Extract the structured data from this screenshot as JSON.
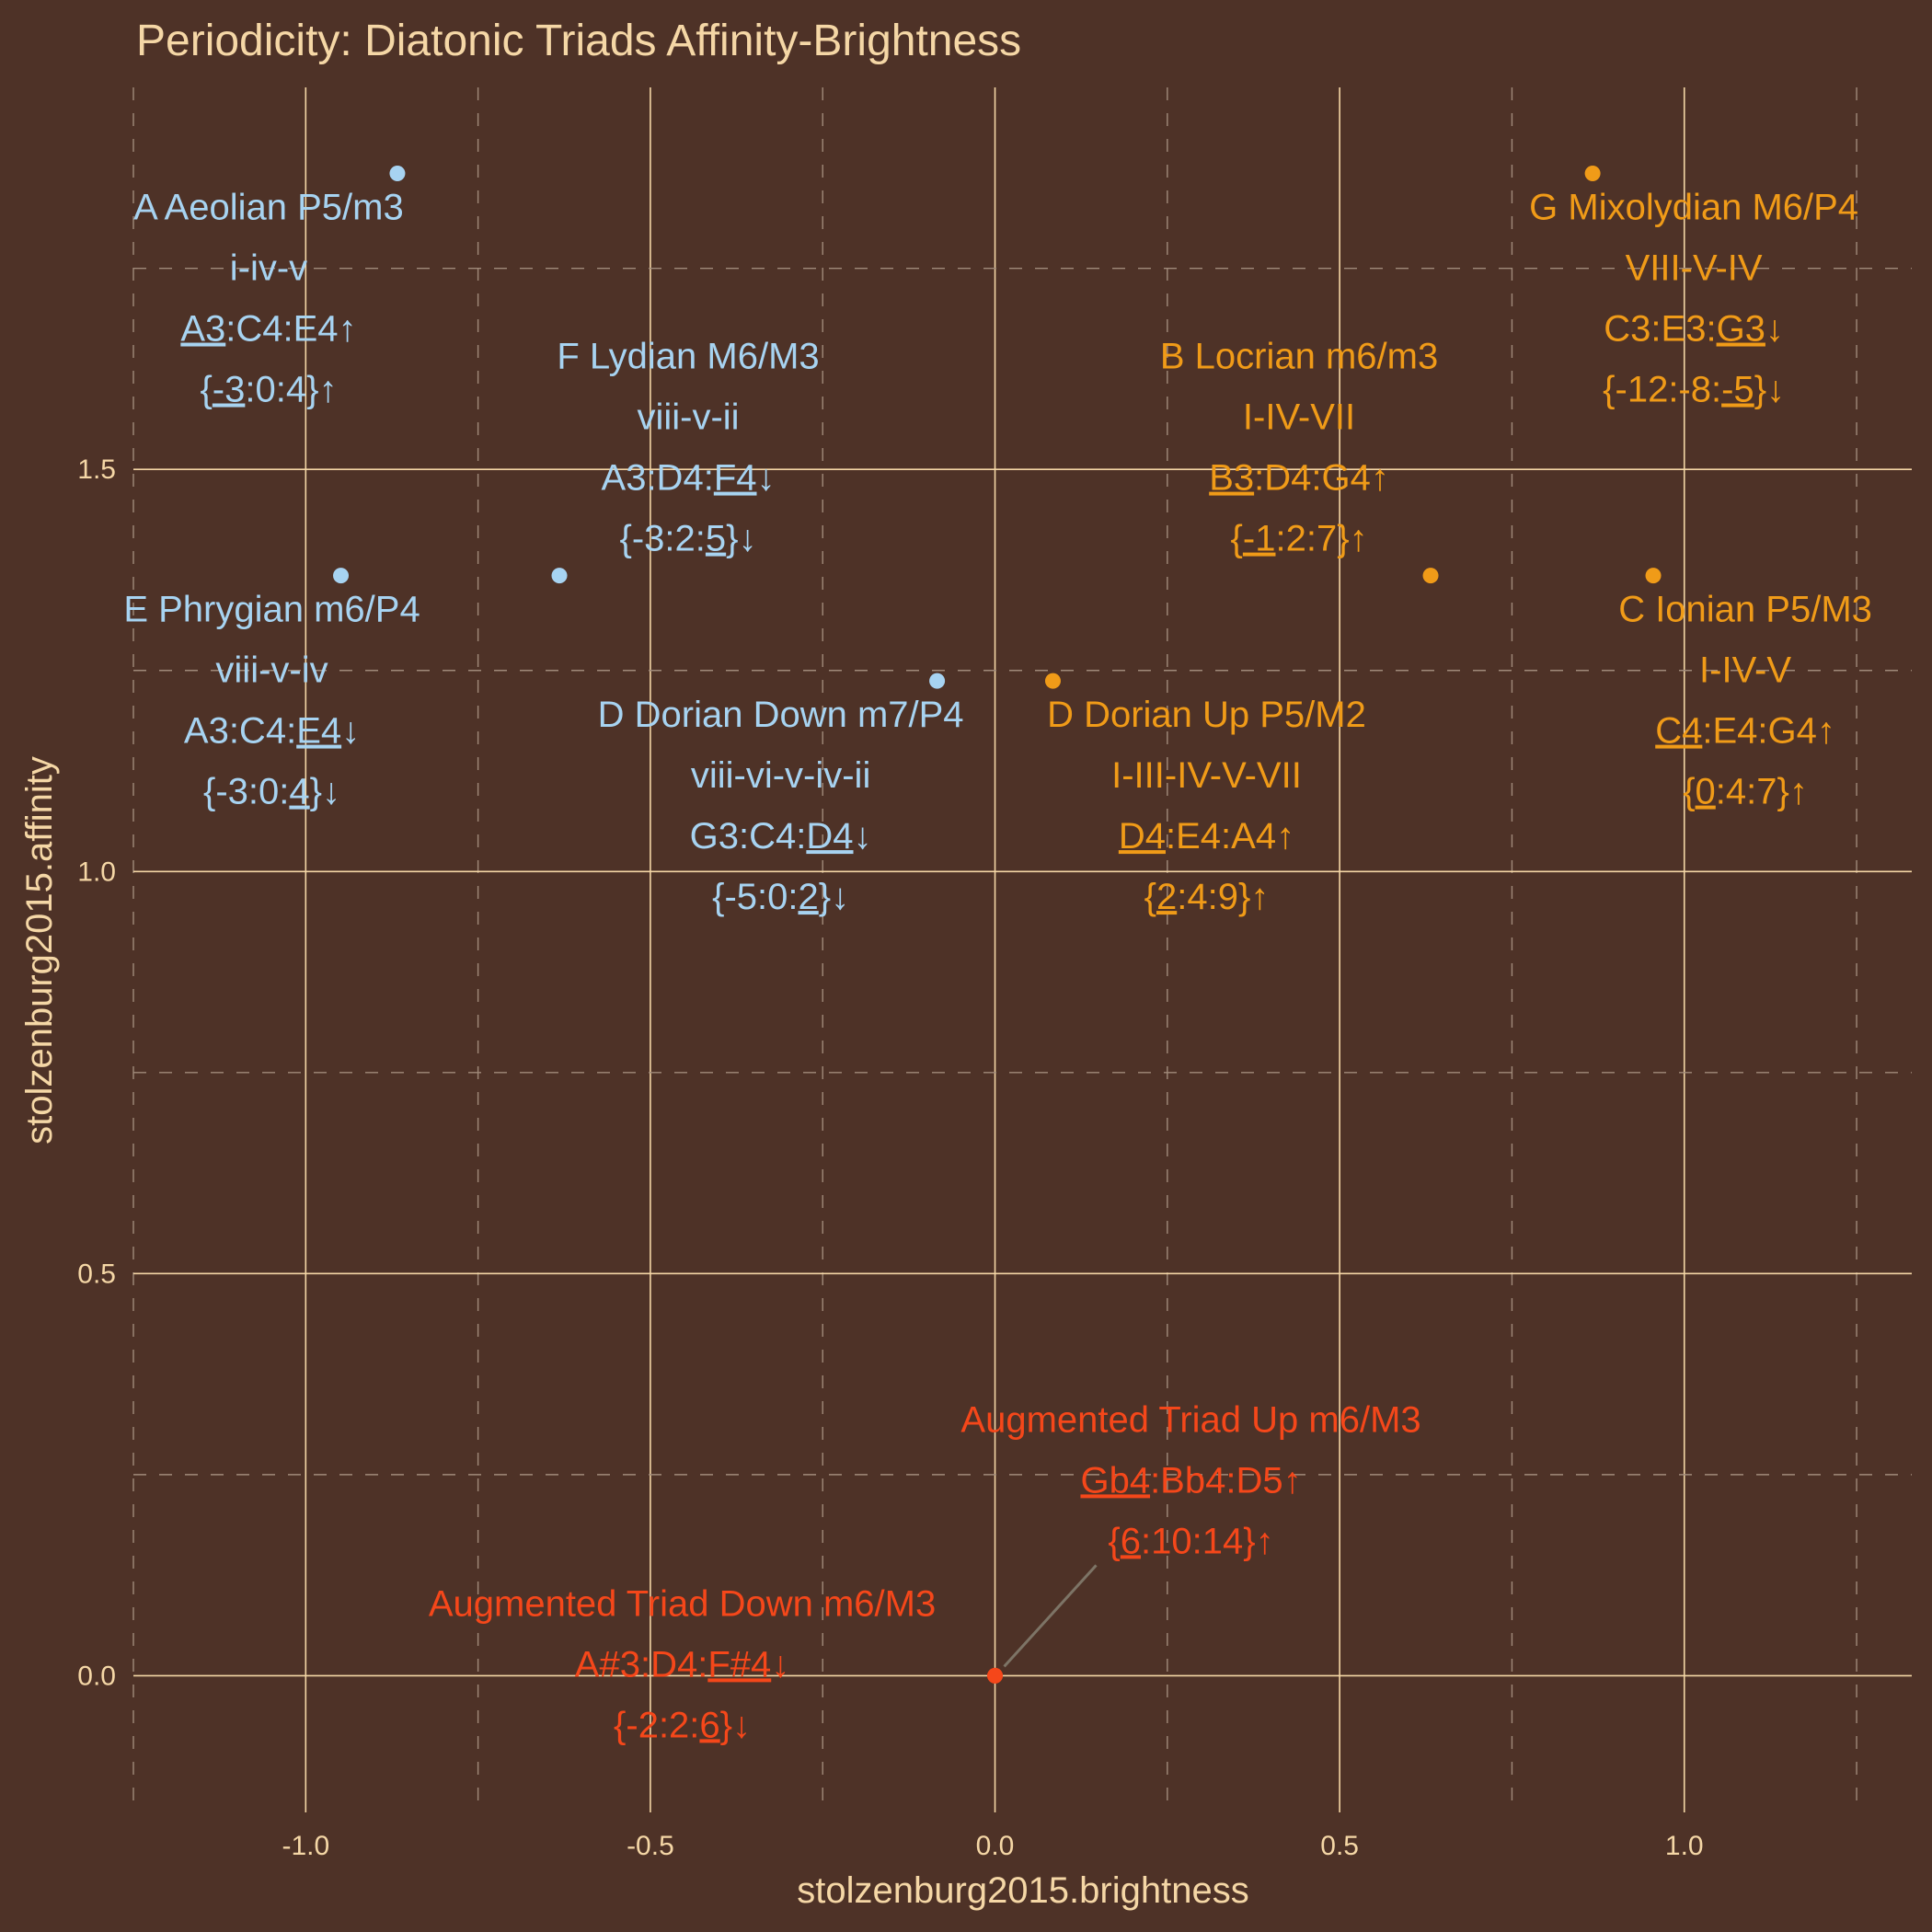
{
  "chart_data": {
    "type": "scatter",
    "title": "Periodicity: Diatonic Triads Affinity-Brightness",
    "xlabel": "stolzenburg2015.brightness",
    "ylabel": "stolzenburg2015.affinity",
    "xlim": [
      -1.25,
      1.33
    ],
    "ylim": [
      -0.17,
      1.975
    ],
    "x_ticks": [
      -1.0,
      -0.5,
      0.0,
      0.5,
      1.0
    ],
    "x_tick_labels": [
      "-1.0",
      "-0.5",
      "0.0",
      "0.5",
      "1.0"
    ],
    "y_ticks": [
      0.0,
      0.5,
      1.0,
      1.5
    ],
    "y_tick_labels": [
      "0.0",
      "0.5",
      "1.0",
      "1.5"
    ],
    "grid": true,
    "colors": {
      "background": "#4e3227",
      "blue": "#a7d3f1",
      "orange": "#f09b18",
      "red": "#f5471a",
      "grid": "#f5d7a6",
      "text": "#f5d7a6",
      "leader": "#7d7466"
    },
    "points": [
      {
        "x": -0.867,
        "y": 1.868,
        "color": "#a7d3f1",
        "lines": [
          [
            [
              "A Aeolian P5/m3",
              false
            ]
          ],
          [
            [
              "i-iv-v",
              false
            ]
          ],
          [
            [
              "A3",
              true
            ],
            [
              ":C4:E4↑",
              false
            ]
          ],
          [
            [
              "{",
              false
            ],
            [
              "-3",
              true
            ],
            [
              ":0:4}↑",
              false
            ]
          ]
        ]
      },
      {
        "x": -0.949,
        "y": 1.368,
        "color": "#a7d3f1",
        "lines": [
          [
            [
              "E Phrygian m6/P4",
              false
            ]
          ],
          [
            [
              "viii-v-iv",
              false
            ]
          ],
          [
            [
              "A3:C4:",
              false
            ],
            [
              "E4",
              true
            ],
            [
              "↓",
              false
            ]
          ],
          [
            [
              "{-3:0:",
              false
            ],
            [
              "4",
              true
            ],
            [
              "}↓",
              false
            ]
          ]
        ]
      },
      {
        "x": -0.632,
        "y": 1.368,
        "color": "#a7d3f1",
        "lines": [
          [
            [
              "F Lydian M6/M3",
              false
            ]
          ],
          [
            [
              "viii-v-ii",
              false
            ]
          ],
          [
            [
              "A3:D4:",
              false
            ],
            [
              "F4",
              true
            ],
            [
              "↓",
              false
            ]
          ],
          [
            [
              "{-3:2:",
              false
            ],
            [
              "5",
              true
            ],
            [
              "}↓",
              false
            ]
          ]
        ]
      },
      {
        "x": -0.084,
        "y": 1.237,
        "color": "#a7d3f1",
        "lines": [
          [
            [
              "D Dorian Down m7/P4",
              false
            ]
          ],
          [
            [
              "viii-vi-v-iv-ii",
              false
            ]
          ],
          [
            [
              "G3:C4:",
              false
            ],
            [
              "D4",
              true
            ],
            [
              "↓",
              false
            ]
          ],
          [
            [
              "{-5:0:",
              false
            ],
            [
              "2",
              true
            ],
            [
              "}↓",
              false
            ]
          ]
        ]
      },
      {
        "x": 0.084,
        "y": 1.237,
        "color": "#f09b18",
        "lines": [
          [
            [
              "D Dorian Up P5/M2",
              false
            ]
          ],
          [
            [
              "I-III-IV-V-VII",
              false
            ]
          ],
          [
            [
              "D4",
              true
            ],
            [
              ":E4:A4↑",
              false
            ]
          ],
          [
            [
              "{",
              false
            ],
            [
              "2",
              true
            ],
            [
              ":4:9}↑",
              false
            ]
          ]
        ]
      },
      {
        "x": 0.632,
        "y": 1.368,
        "color": "#f09b18",
        "lines": [
          [
            [
              "B Locrian m6/m3",
              false
            ]
          ],
          [
            [
              "I-IV-VII",
              false
            ]
          ],
          [
            [
              "B3",
              true
            ],
            [
              ":D4:G4↑",
              false
            ]
          ],
          [
            [
              "{",
              false
            ],
            [
              "-1",
              true
            ],
            [
              ":2:7}↑",
              false
            ]
          ]
        ]
      },
      {
        "x": 0.867,
        "y": 1.868,
        "color": "#f09b18",
        "lines": [
          [
            [
              "G Mixolydian M6/P4",
              false
            ]
          ],
          [
            [
              "VIII-V-IV",
              false
            ]
          ],
          [
            [
              "C3:E3:",
              false
            ],
            [
              "G3",
              true
            ],
            [
              "↓",
              false
            ]
          ],
          [
            [
              "{-12:-8:",
              false
            ],
            [
              "-5",
              true
            ],
            [
              "}↓",
              false
            ]
          ]
        ]
      },
      {
        "x": 0.955,
        "y": 1.368,
        "color": "#f09b18",
        "lines": [
          [
            [
              "C Ionian P5/M3",
              false
            ]
          ],
          [
            [
              "I-IV-V",
              false
            ]
          ],
          [
            [
              "C4",
              true
            ],
            [
              ":E4:G4↑",
              false
            ]
          ],
          [
            [
              "{",
              false
            ],
            [
              "0",
              true
            ],
            [
              ":4:7}↑",
              false
            ]
          ]
        ]
      },
      {
        "x": 0.0,
        "y": 0.0,
        "color": "#f5471a",
        "lines": [
          [
            [
              "Augmented Triad Up m6/M3",
              false
            ]
          ],
          [
            [
              "Gb4",
              true
            ],
            [
              ":Bb4:D5↑",
              false
            ]
          ],
          [
            [
              "{",
              false
            ],
            [
              "6",
              true
            ],
            [
              ":10:14}↑",
              false
            ]
          ]
        ]
      },
      {
        "x": 0.0,
        "y": 0.0,
        "color": "#f5471a",
        "lines": [
          [
            [
              "Augmented Triad Down m6/M3",
              false
            ]
          ],
          [
            [
              "A#3:D4:",
              false
            ],
            [
              "F#4",
              true
            ],
            [
              "↓",
              false
            ]
          ],
          [
            [
              "{-2:2:",
              false
            ],
            [
              "6",
              true
            ],
            [
              "}↓",
              false
            ]
          ]
        ]
      }
    ]
  }
}
